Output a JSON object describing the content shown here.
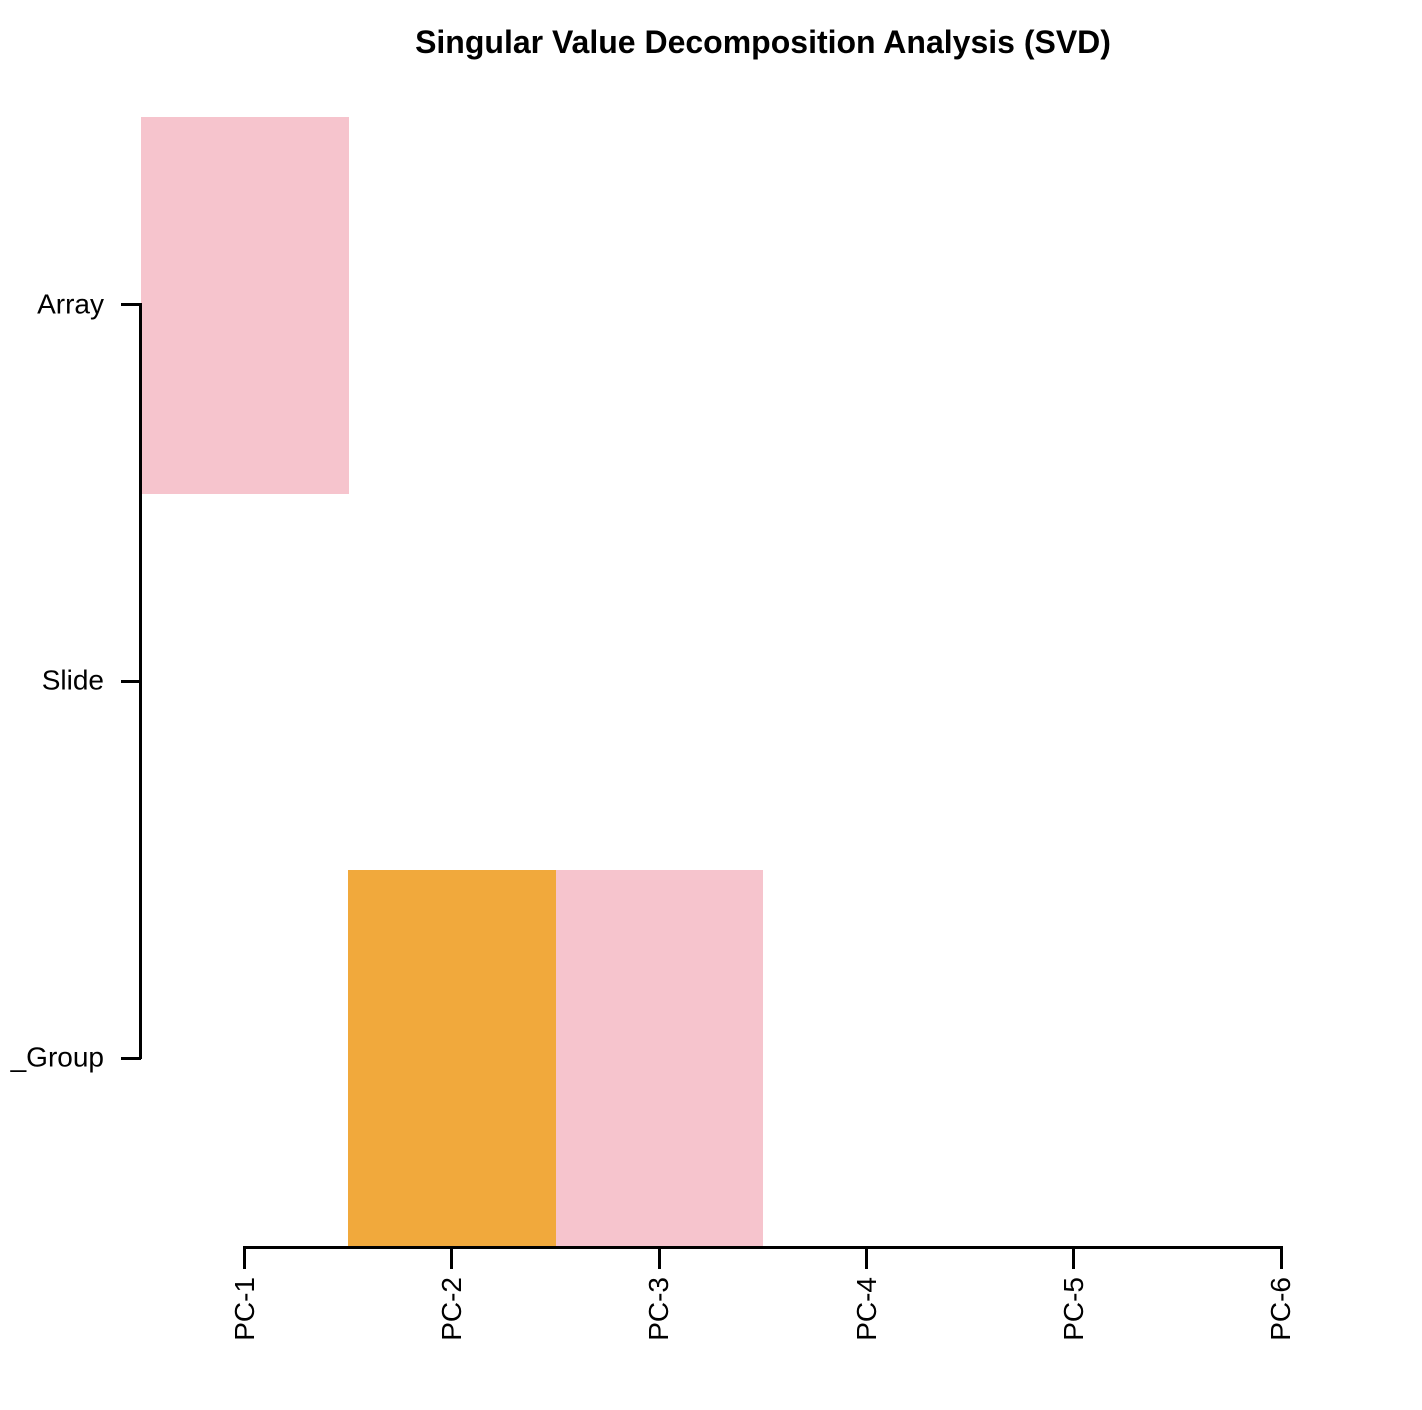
{
  "title": "Singular Value Decomposition Analysis (SVD)",
  "chart_data": {
    "type": "heatmap",
    "title": "Singular Value Decomposition Analysis (SVD)",
    "x_labels": [
      "PC-1",
      "PC-2",
      "PC-3",
      "PC-4",
      "PC-5",
      "PC-6"
    ],
    "y_labels": [
      "Array",
      "Slide",
      "_Group"
    ],
    "cells": [
      {
        "row": "Array",
        "col": "PC-1",
        "color_key": "pink"
      },
      {
        "row": "_Group",
        "col": "PC-2",
        "color_key": "orange"
      },
      {
        "row": "_Group",
        "col": "PC-3",
        "color_key": "pink"
      }
    ],
    "palette": {
      "pink": "#F6C4CD",
      "orange": "#F1A93C"
    },
    "axis_color": "#000000",
    "background": "#FFFFFF",
    "grid": false,
    "legend": "none"
  }
}
